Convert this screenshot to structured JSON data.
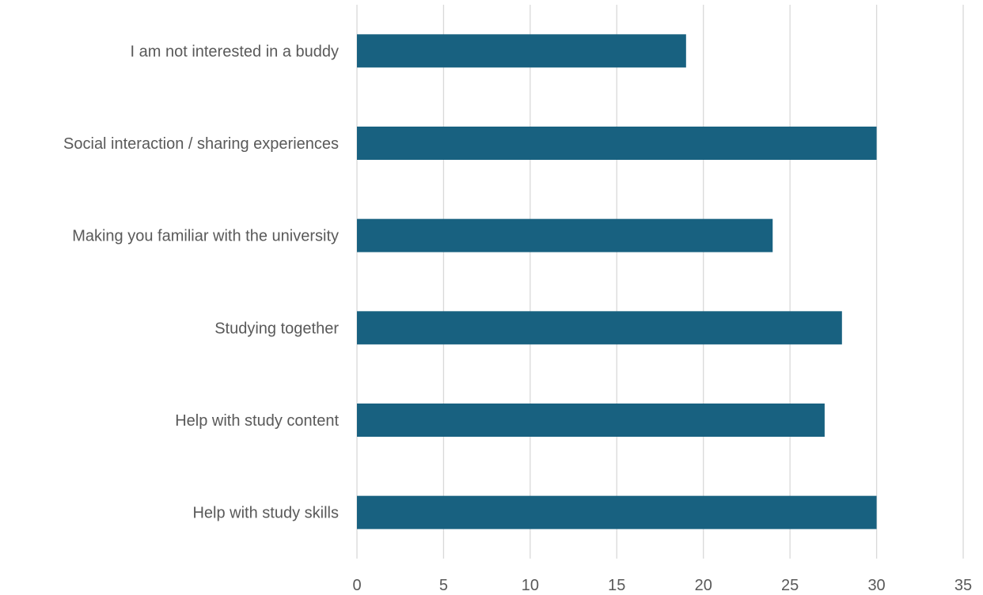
{
  "chart_data": {
    "type": "bar",
    "orientation": "horizontal",
    "categories": [
      "I am not interested in a buddy",
      "Social interaction / sharing experiences",
      "Making you familiar with the university",
      "Studying together",
      "Help with study content",
      "Help with study skills"
    ],
    "values": [
      19,
      30,
      24,
      28,
      27,
      30
    ],
    "xlim": [
      0,
      35
    ],
    "xticks": [
      "0",
      "5",
      "10",
      "15",
      "20",
      "25",
      "30",
      "35"
    ],
    "title": "",
    "xlabel": "",
    "ylabel": "",
    "grid": "vertical",
    "legend": "none",
    "colors": {
      "bar": "#186180",
      "grid": "#d9d9d9",
      "text": "#595959"
    }
  }
}
